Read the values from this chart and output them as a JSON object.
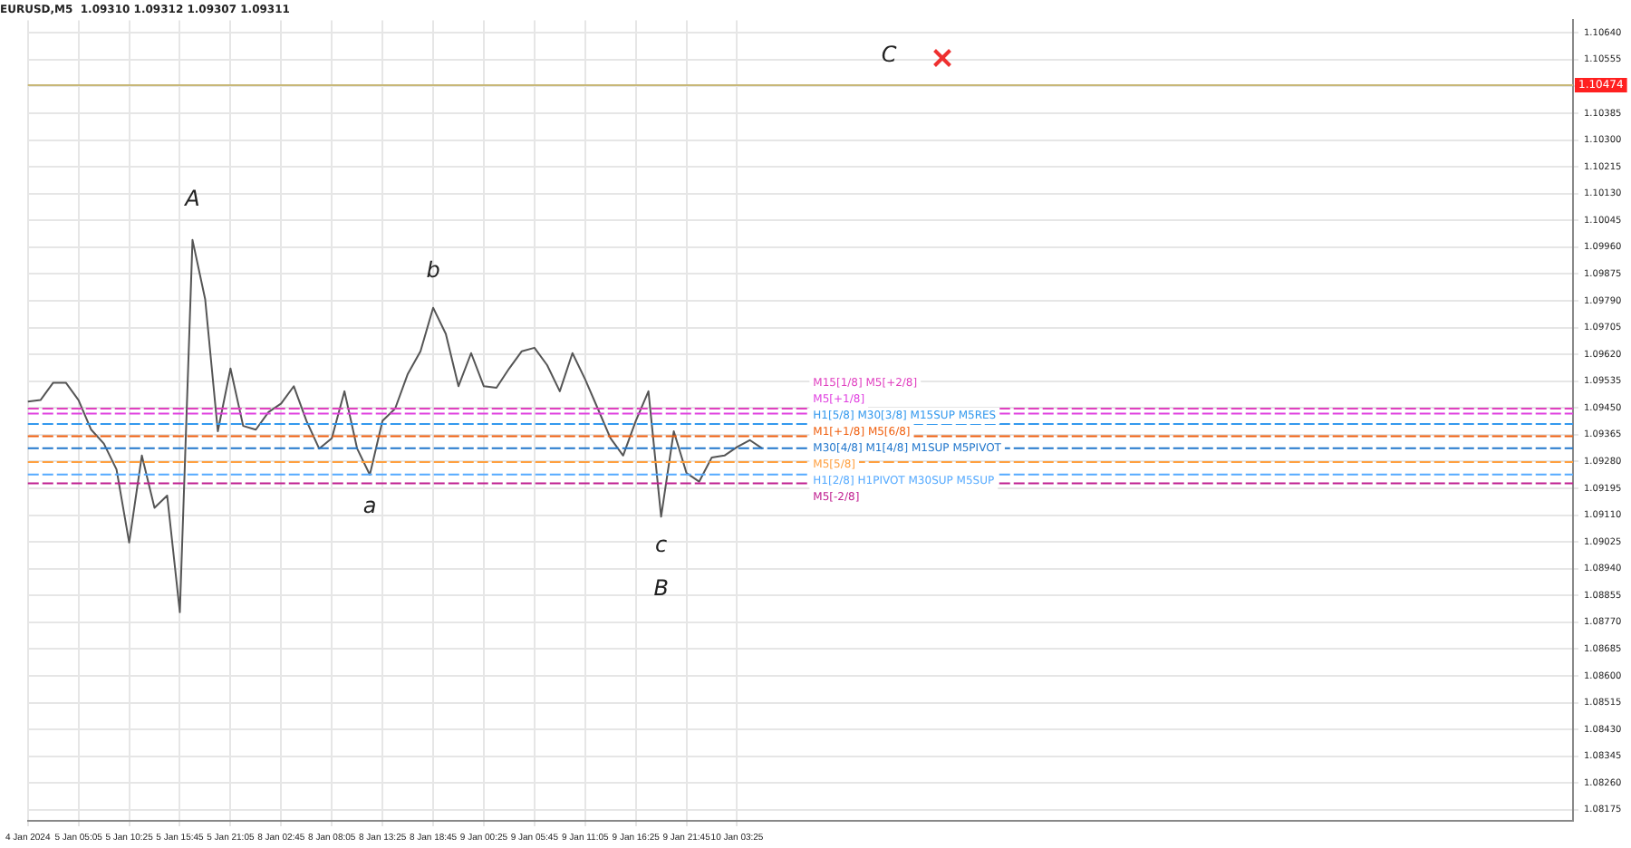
{
  "chart_data": {
    "type": "line",
    "title": "EURUSD,M5  1.09310 1.09312 1.09307 1.09311",
    "categories": [
      "4 Jan 2024",
      null,
      null,
      null,
      "5 Jan 05:05",
      null,
      null,
      null,
      "5 Jan 10:25",
      null,
      null,
      null,
      "5 Jan 15:45",
      null,
      null,
      null,
      "5 Jan 21:05",
      null,
      null,
      null,
      "8 Jan 02:45",
      null,
      null,
      null,
      "8 Jan 08:05",
      null,
      null,
      null,
      "8 Jan 13:25",
      null,
      null,
      null,
      "8 Jan 18:45",
      null,
      null,
      null,
      "9 Jan 00:25",
      null,
      null,
      null,
      "9 Jan 05:45",
      null,
      null,
      null,
      "9 Jan 11:05",
      null,
      null,
      null,
      "9 Jan 16:25",
      null,
      null,
      null,
      "9 Jan 21:45",
      null,
      null,
      null,
      "10 Jan 03:25",
      null,
      null,
      null,
      null,
      null,
      null,
      null,
      null,
      null,
      null,
      null,
      null,
      null,
      null,
      null,
      null,
      null,
      null,
      null,
      null,
      null,
      null,
      null,
      null,
      null,
      null,
      null,
      null,
      null,
      null,
      null,
      null,
      null,
      null,
      null,
      null,
      null,
      null,
      null,
      null,
      null,
      null,
      null,
      null,
      null,
      null,
      null,
      null,
      null,
      null,
      null,
      null,
      null,
      null,
      null,
      null,
      null,
      null,
      null,
      null,
      null,
      null,
      null,
      null,
      null,
      null
    ],
    "series": [
      {
        "color": "#555555",
        "values": [
          1.0947,
          1.09475,
          1.0953,
          1.0953,
          1.09475,
          1.09381,
          1.09337,
          1.09255,
          1.09023,
          1.09299,
          1.09133,
          1.09172,
          1.08802,
          1.09983,
          1.09795,
          1.09376,
          1.09575,
          1.09393,
          1.09381,
          1.09437,
          1.09464,
          1.09519,
          1.09409,
          1.09321,
          1.09354,
          1.09503,
          1.09321,
          1.09238,
          1.09409,
          1.09448,
          1.09558,
          1.0963,
          1.09768,
          1.09685,
          1.09519,
          1.09624,
          1.09519,
          1.09514,
          1.09575,
          1.0963,
          1.09641,
          1.09586,
          1.09503,
          1.09624,
          1.09541,
          1.09448,
          1.09354,
          1.09299,
          1.09409,
          1.09503,
          1.09105,
          1.09376,
          1.09244,
          1.09216,
          1.09293,
          1.09299,
          1.09326,
          1.09348,
          1.09321,
          null,
          null,
          null,
          null,
          null,
          null,
          null,
          null,
          null,
          null,
          null,
          null,
          null,
          null,
          null,
          null,
          null,
          null,
          null,
          null,
          null,
          null,
          null,
          null,
          null,
          null,
          null,
          null,
          null,
          null,
          null,
          null,
          null,
          null,
          null,
          null,
          null,
          null,
          null,
          null,
          null,
          null,
          null,
          null,
          null,
          null,
          null,
          null,
          null,
          null,
          null,
          null,
          null,
          null,
          null,
          null,
          null,
          null,
          null,
          null,
          null,
          null,
          null,
          null
        ]
      }
    ],
    "ylim": [
      1.0814,
      1.1068
    ],
    "yticks": [
      1.08175,
      {
        "value": 1.0826,
        "label": "1.08260"
      },
      1.08345,
      {
        "value": 1.0843,
        "label": "1.08430"
      },
      1.08515,
      {
        "value": 1.086,
        "label": "1.08600"
      },
      1.08685,
      {
        "value": 1.0877,
        "label": "1.08770"
      },
      1.08855,
      {
        "value": 1.0894,
        "label": "1.08940"
      },
      1.09025,
      {
        "value": 1.0911,
        "label": "1.09110"
      },
      1.09195,
      {
        "value": 1.0928,
        "label": "1.09280"
      },
      1.09365,
      {
        "value": 1.0945,
        "label": "1.09450"
      },
      1.09535,
      {
        "value": 1.0962,
        "label": "1.09620"
      },
      1.09705,
      {
        "value": 1.0979,
        "label": "1.09790"
      },
      1.09875,
      {
        "value": 1.0996,
        "label": "1.09960"
      },
      1.10045,
      {
        "value": 1.1013,
        "label": "1.10130"
      },
      1.10215,
      {
        "value": 1.103,
        "label": "1.10300"
      },
      1.10385,
      {
        "value": 1.1047,
        "label": null
      },
      1.10555,
      {
        "value": 1.1064,
        "label": "1.10640"
      }
    ],
    "grid": true,
    "legend": false,
    "marker": "none",
    "line_style": "solid",
    "ref_lines": [
      {
        "axis": "y",
        "value": 1.10474,
        "label": "1.10474",
        "color": "#c8b878",
        "line_style": "solid"
      },
      {
        "axis": "y",
        "value": 1.09448,
        "label": "M15[1/8] M5[+2/8]",
        "color": "#e040c0",
        "line_style": "dashed"
      },
      {
        "axis": "y",
        "value": 1.09432,
        "label": "M5[+1/8]",
        "color": "#e040e0",
        "line_style": "dashed"
      },
      {
        "axis": "y",
        "value": 1.09399,
        "label": "H1[5/8] M30[3/8] M15SUP M5RES",
        "color": "#3399ee",
        "line_style": "dashed"
      },
      {
        "axis": "y",
        "value": 1.0936,
        "label": "M1[+1/8] M5[6/8]",
        "color": "#f06010",
        "line_style": "dashed"
      },
      {
        "axis": "y",
        "value": 1.09322,
        "label": "M30[4/8] M1[4/8] M1SUP M5PIVOT",
        "color": "#2277cc",
        "line_style": "dashed"
      },
      {
        "axis": "y",
        "value": 1.09278,
        "label": "M5[5/8]",
        "color": "#ffa040",
        "line_style": "dashed"
      },
      {
        "axis": "y",
        "value": 1.09239,
        "label": "H1[2/8] H1PIVOT M30SUP M5SUP",
        "color": "#55aaff",
        "line_style": "dashed"
      },
      {
        "axis": "y",
        "value": 1.09211,
        "label": "M5[-2/8]",
        "color": "#c02090",
        "line_style": "dashed"
      }
    ],
    "annotations": [
      "A",
      "b",
      "a",
      "c",
      "B",
      "C"
    ]
  }
}
